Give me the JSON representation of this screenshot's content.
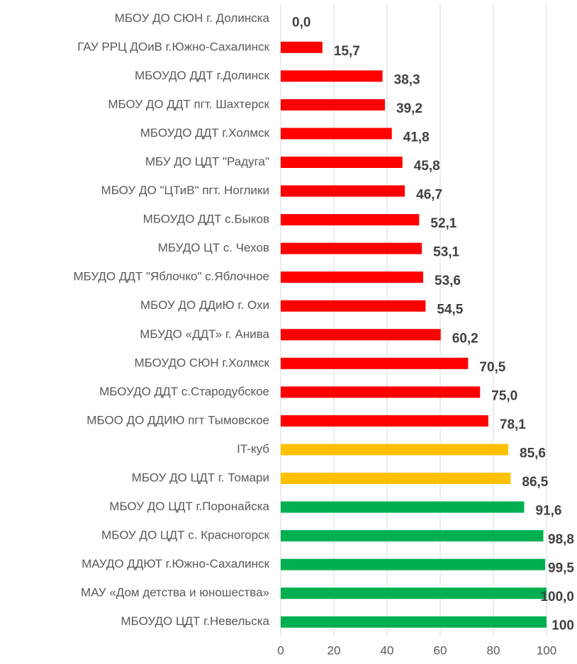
{
  "chart_data": {
    "type": "barh",
    "categories": [
      "МБОУ ДО СЮН г. Долинска",
      "ГАУ РРЦ ДОиВ г.Южно-Сахалинск",
      "МБОУДО ДДТ г.Долинск",
      "МБОУ ДО ДДТ пгт. Шахтерск",
      "МБОУДО ДДТ г.Холмск",
      "МБУ ДО ЦДТ \"Радуга\"",
      "МБОУ ДО \"ЦТиВ\" пгт. Ноглики",
      "МБОУДО ДДТ с.Быков",
      "МБУДО ЦТ с. Чехов",
      "МБУДО ДДТ \"Яблочко\" с.Яблочное",
      "МБОУ ДО ДДиЮ г. Охи",
      "МБУДО «ДДТ» г. Анива",
      "МБОУДО СЮН г.Холмск",
      "МБОУДО ДДТ с.Стародубское",
      "МБОО ДО ДДИЮ пгт Тымовское",
      "IT-куб",
      "МБОУ ДО ЦДТ г. Томари",
      "МБОУ ДО ЦДТ г.Поронайска",
      "МБОУ ДО ЦДТ с. Красногорск",
      "МАУДО ДДЮТ г.Южно-Сахалинск",
      "МАУ «Дом детства и юношества»",
      "МБОУДО ЦДТ г.Невельска"
    ],
    "values": [
      0,
      15.7,
      38.3,
      39.2,
      41.8,
      45.8,
      46.7,
      52.1,
      53.1,
      53.6,
      54.5,
      60.2,
      70.5,
      75,
      78.1,
      85.6,
      86.5,
      91.6,
      98.8,
      99.5,
      100,
      100
    ],
    "value_labels": [
      "0,0",
      "15,7",
      "38,3",
      "39,2",
      "41,8",
      "45,8",
      "46,7",
      "52,1",
      "53,1",
      "53,6",
      "54,5",
      "60,2",
      "70,5",
      "75,0",
      "78,1",
      "85,6",
      "86,5",
      "91,6",
      "98,8",
      "99,5",
      "100,0",
      "100"
    ],
    "colors": [
      "#ff0000",
      "#ff0000",
      "#ff0000",
      "#ff0000",
      "#ff0000",
      "#ff0000",
      "#ff0000",
      "#ff0000",
      "#ff0000",
      "#ff0000",
      "#ff0000",
      "#ff0000",
      "#ff0000",
      "#ff0000",
      "#ff0000",
      "#ffc000",
      "#ffc000",
      "#00b050",
      "#00b050",
      "#00b050",
      "#00b050",
      "#00b050"
    ],
    "xlim": [
      0,
      100
    ],
    "xticks": [
      0,
      20,
      40,
      60,
      80,
      100
    ],
    "grid": true
  }
}
